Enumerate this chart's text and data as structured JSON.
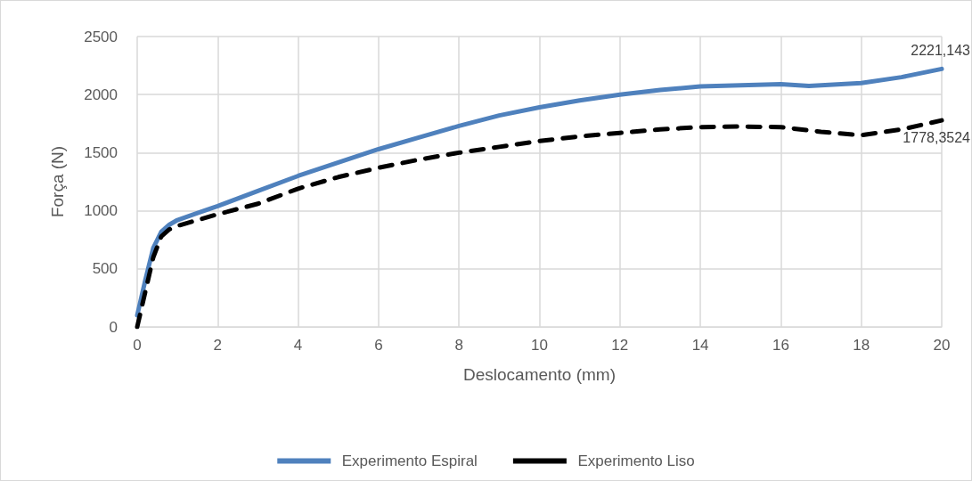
{
  "chart_data": {
    "type": "line",
    "xlabel": "Deslocamento (mm)",
    "ylabel": "Força (N)",
    "xlim": [
      0,
      20
    ],
    "xticks": [
      0,
      2,
      4,
      6,
      8,
      10,
      12,
      14,
      16,
      18,
      20
    ],
    "ylim": [
      0,
      2500
    ],
    "yticks": [
      0,
      500,
      1000,
      1500,
      2000,
      2500
    ],
    "grid": true,
    "legend": "bottom",
    "marker": "none",
    "series": [
      {
        "name": "Experimento Espiral",
        "color": "#4f81bd",
        "line_style": "solid",
        "x": [
          0,
          0.2,
          0.4,
          0.6,
          0.8,
          1,
          1.5,
          2,
          3,
          4,
          5,
          6,
          7,
          8,
          9,
          10,
          11,
          12,
          13,
          14,
          15,
          16,
          16.7,
          17,
          18,
          19,
          20
        ],
        "values": [
          100,
          400,
          680,
          820,
          880,
          920,
          980,
          1040,
          1170,
          1300,
          1415,
          1530,
          1630,
          1730,
          1820,
          1890,
          1950,
          2000,
          2040,
          2070,
          2080,
          2090,
          2075,
          2080,
          2100,
          2150,
          2221.143
        ],
        "value_labels": [
          null,
          null,
          null,
          null,
          null,
          null,
          null,
          null,
          null,
          null,
          null,
          null,
          null,
          null,
          null,
          null,
          null,
          null,
          null,
          null,
          null,
          null,
          null,
          null,
          null,
          null,
          "2221,143"
        ]
      },
      {
        "name": "Experimento Liso",
        "color": "#000000",
        "line_style": "dashed",
        "x": [
          0,
          0.2,
          0.4,
          0.6,
          0.8,
          1,
          2,
          3,
          4,
          5,
          6,
          7,
          8,
          9,
          10,
          11,
          12,
          13,
          14,
          15,
          16,
          17,
          18,
          19,
          20
        ],
        "values": [
          0,
          300,
          600,
          780,
          840,
          870,
          970,
          1060,
          1190,
          1290,
          1370,
          1440,
          1500,
          1550,
          1600,
          1640,
          1670,
          1700,
          1720,
          1725,
          1720,
          1680,
          1650,
          1700,
          1778.3524
        ],
        "value_labels": [
          null,
          null,
          null,
          null,
          null,
          null,
          null,
          null,
          null,
          null,
          null,
          null,
          null,
          null,
          null,
          null,
          null,
          null,
          null,
          null,
          null,
          null,
          null,
          null,
          "1778,3524"
        ]
      }
    ]
  }
}
